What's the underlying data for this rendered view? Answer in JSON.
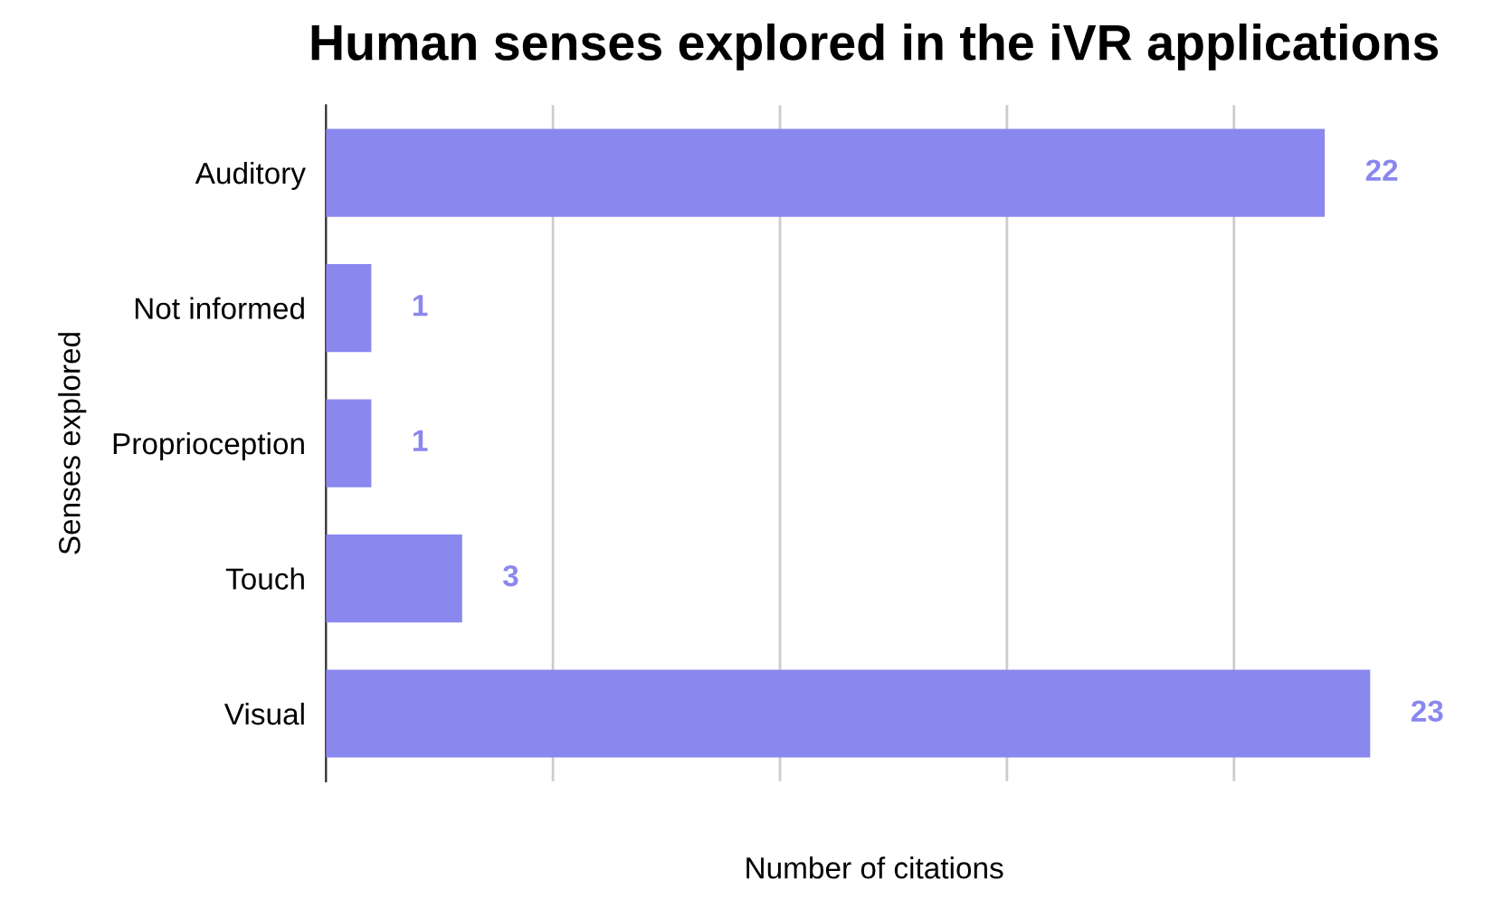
{
  "chart_data": {
    "type": "bar",
    "orientation": "horizontal",
    "title": "Human senses explored in the iVR applications",
    "xlabel": "Number of citations",
    "ylabel": "Senses explored",
    "categories": [
      "Auditory",
      "Not informed",
      "Proprioception",
      "Touch",
      "Visual"
    ],
    "values": [
      22,
      1,
      1,
      3,
      23
    ],
    "color": "#8a87ef",
    "data_labels": true,
    "xticks": [
      {
        "value": 0,
        "label": null
      },
      {
        "value": 5,
        "label": null
      },
      {
        "value": 10,
        "label": null
      },
      {
        "value": 15,
        "label": null
      },
      {
        "value": 20,
        "label": null
      }
    ],
    "grid": "x",
    "tick_labels": "y",
    "legend": false
  }
}
